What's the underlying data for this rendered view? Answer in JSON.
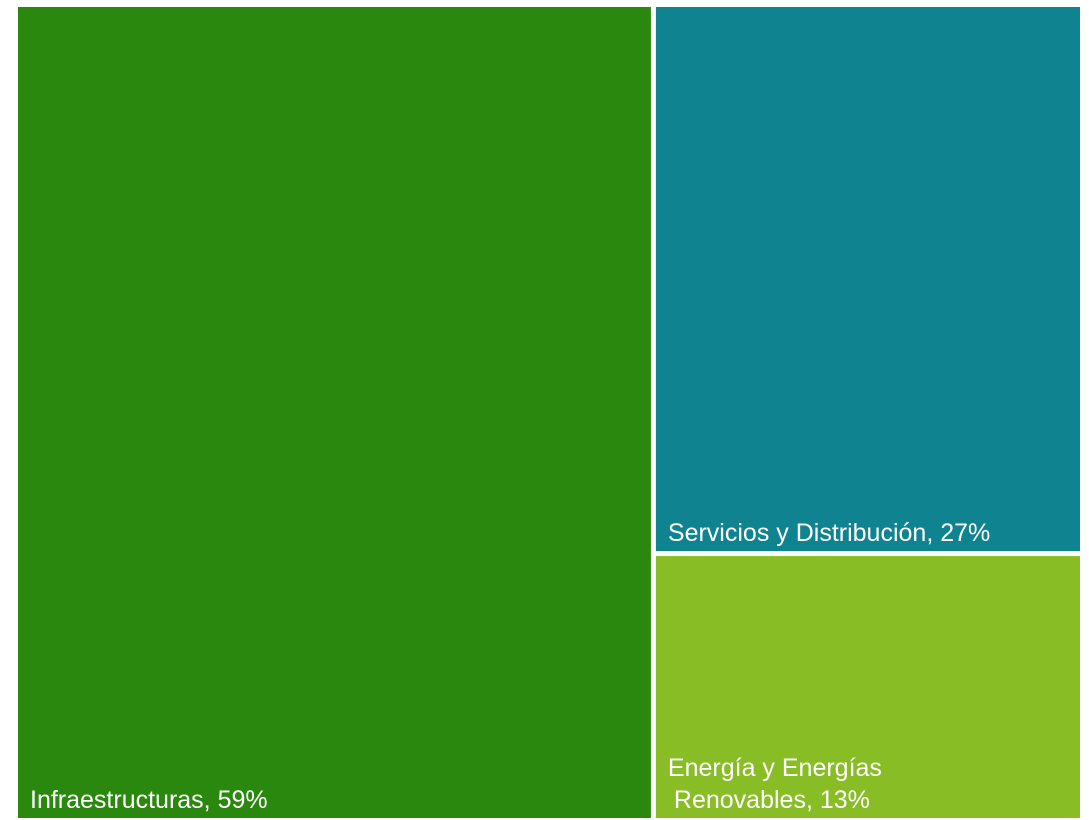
{
  "chart_data": {
    "type": "treemap",
    "title": "",
    "items": [
      {
        "name": "Infraestructuras",
        "value": 59,
        "label": "Infraestructuras, 59%",
        "label_lines": [
          "Infraestructuras, 59%"
        ],
        "color": "#29880d"
      },
      {
        "name": "Servicios y Distribución",
        "value": 27,
        "label": "Servicios y Distribución, 27%",
        "label_lines": [
          "Servicios y Distribución, 27%"
        ],
        "color": "#0f838f"
      },
      {
        "name": "Energía y Energías Renovables",
        "value": 13,
        "label": "Energía y Energías Renovables, 13%",
        "label_lines": [
          "Energía y Energías",
          "Renovables, 13%"
        ],
        "color": "#88bd26"
      }
    ]
  }
}
